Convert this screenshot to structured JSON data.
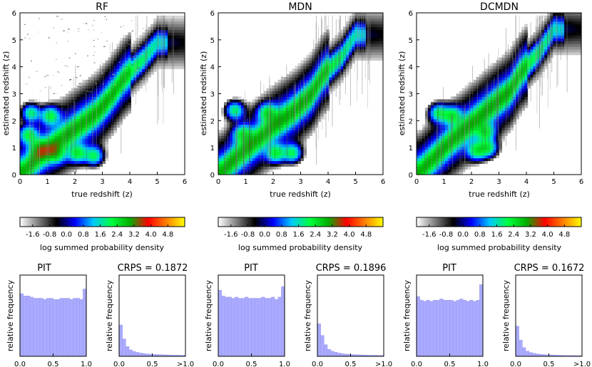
{
  "figure": {
    "panels": [
      {
        "title": "RF",
        "crps_label": "CRPS = 0.1872"
      },
      {
        "title": "MDN",
        "crps_label": "CRPS = 0.1896"
      },
      {
        "title": "DCMDN",
        "crps_label": "CRPS = 0.1672"
      }
    ],
    "colorbar": {
      "label": "log summed probability density",
      "ticks": [
        "-1.6",
        "-0.8",
        "0.0",
        "0.8",
        "1.6",
        "2.4",
        "3.2",
        "4.0",
        "4.8"
      ],
      "range": [
        -2.2,
        5.6
      ],
      "colors": [
        "#ffffff",
        "#808080",
        "#000000",
        "#0000ff",
        "#00c8ff",
        "#00ff40",
        "#00b000",
        "#ff0000",
        "#ff7f00",
        "#ffff00"
      ]
    },
    "pit_title": "PIT",
    "hist_ylabel": "relative frequency"
  },
  "chart_data": [
    {
      "type": "heatmap",
      "title": "RF",
      "xlabel": "true redshift (z)",
      "ylabel": "estimated redshift (z)",
      "xlim": [
        0,
        6
      ],
      "ylim": [
        0,
        6
      ],
      "xticks": [
        "0",
        "1",
        "2",
        "3",
        "4",
        "5",
        "6"
      ],
      "yticks": [
        "0",
        "1",
        "2",
        "3",
        "4",
        "5",
        "6"
      ],
      "ridge": [
        [
          0.1,
          0.1
        ],
        [
          0.6,
          0.6
        ],
        [
          1.2,
          1.1
        ],
        [
          2.0,
          1.7
        ],
        [
          2.8,
          2.3
        ],
        [
          3.3,
          2.9
        ],
        [
          3.8,
          3.6
        ],
        [
          4.5,
          4.3
        ],
        [
          5.0,
          4.9
        ]
      ],
      "blobs": [
        [
          0.4,
          2.3
        ],
        [
          0.7,
          1.0
        ],
        [
          1.3,
          0.8
        ],
        [
          2.1,
          0.8
        ],
        [
          2.7,
          0.7
        ],
        [
          1.1,
          2.2
        ],
        [
          0.3,
          1.5
        ]
      ],
      "noise": "high"
    },
    {
      "type": "heatmap",
      "title": "MDN",
      "xlabel": "true redshift (z)",
      "ylabel": "estimated redshift (z)",
      "xlim": [
        0,
        6
      ],
      "ylim": [
        0,
        6
      ],
      "xticks": [
        "0",
        "1",
        "2",
        "3",
        "4",
        "5",
        "6"
      ],
      "yticks": [
        "0",
        "1",
        "2",
        "3",
        "4",
        "5",
        "6"
      ],
      "ridge": [
        [
          0.1,
          0.1
        ],
        [
          0.6,
          0.6
        ],
        [
          1.2,
          1.1
        ],
        [
          2.0,
          1.8
        ],
        [
          2.8,
          2.4
        ],
        [
          3.4,
          3.0
        ],
        [
          3.8,
          3.7
        ],
        [
          4.5,
          4.4
        ],
        [
          5.0,
          5.2
        ]
      ],
      "blobs": [
        [
          0.6,
          2.4
        ],
        [
          0.9,
          1.5
        ],
        [
          2.1,
          0.8
        ],
        [
          2.7,
          0.8
        ],
        [
          1.8,
          2.3
        ]
      ],
      "noise": "low"
    },
    {
      "type": "heatmap",
      "title": "DCMDN",
      "xlabel": "true redshift (z)",
      "ylabel": "estimated redshift (z)",
      "xlim": [
        0,
        6
      ],
      "ylim": [
        0,
        6
      ],
      "xticks": [
        "0",
        "1",
        "2",
        "3",
        "4",
        "5",
        "6"
      ],
      "yticks": [
        "0",
        "1",
        "2",
        "3",
        "4",
        "5",
        "6"
      ],
      "ridge": [
        [
          0.1,
          0.1
        ],
        [
          0.6,
          0.6
        ],
        [
          1.2,
          1.2
        ],
        [
          2.0,
          1.9
        ],
        [
          2.8,
          2.6
        ],
        [
          3.4,
          3.1
        ],
        [
          3.8,
          3.8
        ],
        [
          4.5,
          4.6
        ],
        [
          5.0,
          5.4
        ]
      ],
      "blobs": [
        [
          0.8,
          2.3
        ],
        [
          1.3,
          2.2
        ],
        [
          2.2,
          0.9
        ],
        [
          2.6,
          1.0
        ],
        [
          2.5,
          1.6
        ]
      ],
      "noise": "low"
    },
    {
      "type": "bar",
      "title": "PIT",
      "model": "RF",
      "xlim": [
        0,
        1
      ],
      "xticks": [
        "0.0",
        "0.5",
        "1.0"
      ],
      "ylabel": "relative frequency",
      "values": [
        0.054,
        0.052,
        0.052,
        0.051,
        0.05,
        0.05,
        0.05,
        0.049,
        0.05,
        0.05,
        0.049,
        0.049,
        0.05,
        0.05,
        0.05,
        0.049,
        0.05,
        0.05,
        0.049,
        0.058
      ],
      "ymax": 0.07
    },
    {
      "type": "bar",
      "title": "CRPS = 0.1872",
      "model": "RF",
      "xticks": [
        "0.0",
        "0.5",
        ">1.0"
      ],
      "ylabel": "relative frequency",
      "values": [
        0.27,
        0.15,
        0.085,
        0.055,
        0.042,
        0.034,
        0.028,
        0.024,
        0.021,
        0.018,
        0.016,
        0.015,
        0.014,
        0.013,
        0.012,
        0.011,
        0.01,
        0.01,
        0.009,
        0.009
      ],
      "ymax": 0.7
    },
    {
      "type": "bar",
      "title": "PIT",
      "model": "MDN",
      "xlim": [
        0,
        1
      ],
      "xticks": [
        "0.0",
        "0.5",
        "1.0"
      ],
      "ylabel": "relative frequency",
      "values": [
        0.057,
        0.052,
        0.051,
        0.051,
        0.05,
        0.051,
        0.05,
        0.05,
        0.051,
        0.05,
        0.05,
        0.05,
        0.05,
        0.051,
        0.05,
        0.05,
        0.051,
        0.049,
        0.051,
        0.06
      ],
      "ymax": 0.07
    },
    {
      "type": "bar",
      "title": "CRPS = 0.1896",
      "model": "MDN",
      "xticks": [
        "0.0",
        "0.5",
        ">1.0"
      ],
      "ylabel": "relative frequency",
      "values": [
        0.28,
        0.18,
        0.1,
        0.06,
        0.045,
        0.035,
        0.028,
        0.023,
        0.02,
        0.017,
        0.015,
        0.014,
        0.013,
        0.012,
        0.011,
        0.01,
        0.009,
        0.009,
        0.008,
        0.008
      ],
      "ymax": 0.7
    },
    {
      "type": "bar",
      "title": "PIT",
      "model": "DCMDN",
      "xlim": [
        0,
        1
      ],
      "xticks": [
        "0.0",
        "0.5",
        "1.0"
      ],
      "ylabel": "relative frequency",
      "values": [
        0.05,
        0.047,
        0.046,
        0.047,
        0.046,
        0.047,
        0.047,
        0.048,
        0.047,
        0.047,
        0.047,
        0.046,
        0.047,
        0.048,
        0.047,
        0.046,
        0.047,
        0.046,
        0.047,
        0.06
      ],
      "ymax": 0.068
    },
    {
      "type": "bar",
      "title": "CRPS = 0.1672",
      "model": "DCMDN",
      "xticks": [
        "0.0",
        "0.5",
        ">1.0"
      ],
      "ylabel": "relative frequency",
      "values": [
        0.26,
        0.14,
        0.075,
        0.045,
        0.033,
        0.026,
        0.021,
        0.018,
        0.015,
        0.013,
        0.012,
        0.011,
        0.01,
        0.009,
        0.008,
        0.008,
        0.007,
        0.007,
        0.006,
        0.006
      ],
      "ymax": 0.7
    }
  ]
}
